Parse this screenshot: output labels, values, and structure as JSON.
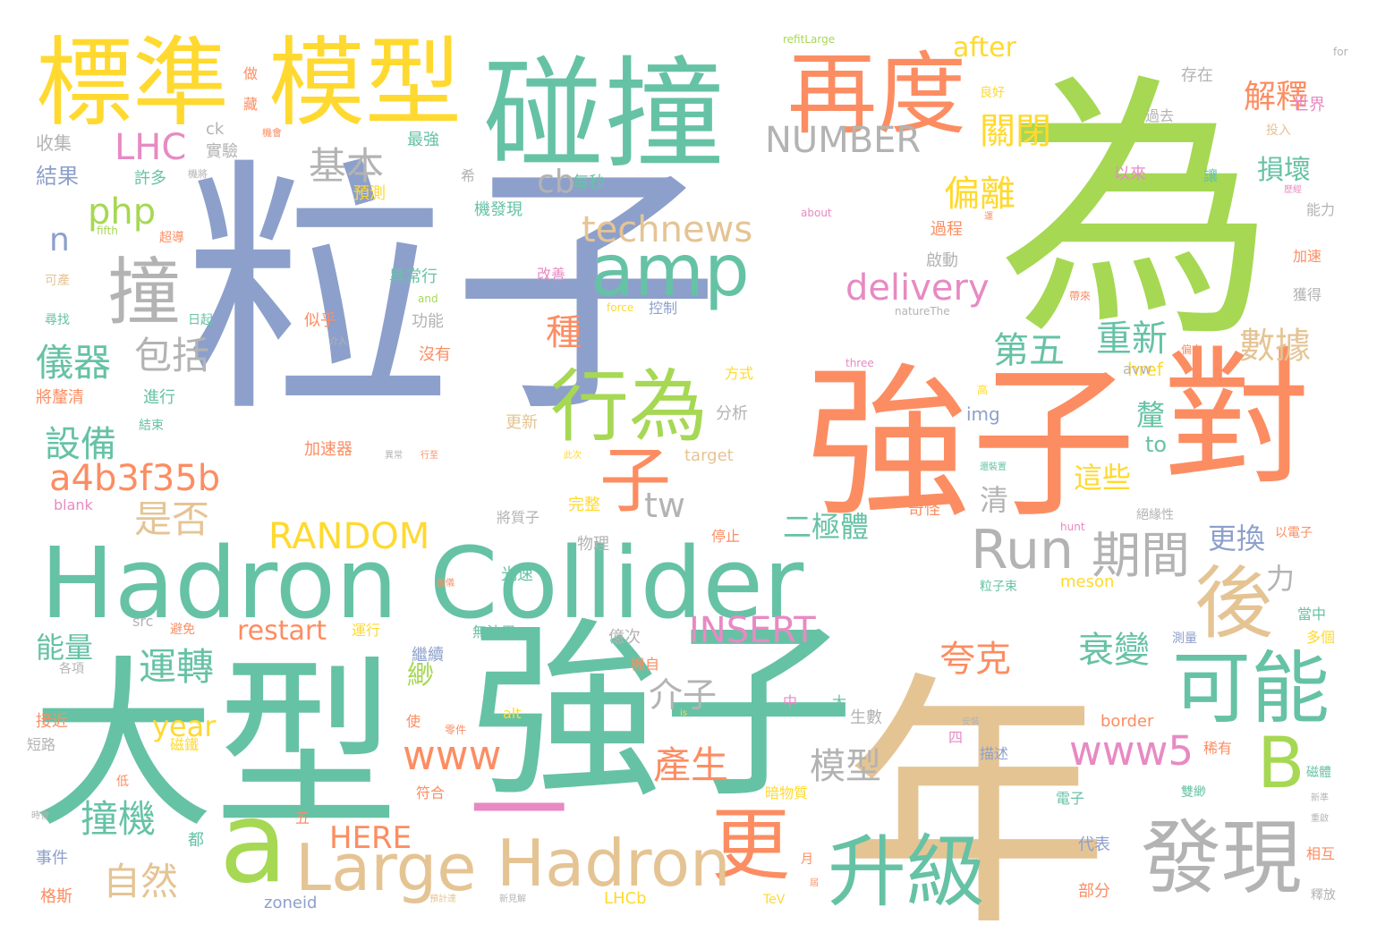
{
  "palette": {
    "green": "#66c2a5",
    "orange": "#fc8d62",
    "blue": "#8da0cb",
    "pink": "#e78ac3",
    "lime": "#a6d854",
    "yellow": "#ffd92f",
    "tan": "#e5c494",
    "gray": "#b3b3b3"
  },
  "words": [
    {
      "text": "粒子",
      "weight": 100,
      "color": "blue"
    },
    {
      "text": "為",
      "weight": 92,
      "color": "lime"
    },
    {
      "text": "年",
      "weight": 88,
      "color": "tan"
    },
    {
      "text": "強子",
      "weight": 62,
      "color": "green"
    },
    {
      "text": "大型",
      "weight": 60,
      "color": "green"
    },
    {
      "text": "強子",
      "weight": 58,
      "color": "orange"
    },
    {
      "text": "對",
      "weight": 54,
      "color": "orange"
    },
    {
      "text": "Hadron Collider",
      "weight": 44,
      "color": "green"
    },
    {
      "text": "碰撞",
      "weight": 40,
      "color": "green"
    },
    {
      "text": "一",
      "weight": 38,
      "color": "pink"
    },
    {
      "text": "標準",
      "weight": 34,
      "color": "yellow"
    },
    {
      "text": "模型",
      "weight": 34,
      "color": "yellow"
    },
    {
      "text": "a",
      "weight": 32,
      "color": "lime"
    },
    {
      "text": "再度",
      "weight": 30,
      "color": "orange"
    },
    {
      "text": "發現",
      "weight": 28,
      "color": "gray"
    },
    {
      "text": "升級",
      "weight": 28,
      "color": "green"
    },
    {
      "text": "可能",
      "weight": 28,
      "color": "green"
    },
    {
      "text": "更",
      "weight": 28,
      "color": "orange"
    },
    {
      "text": "後",
      "weight": 27,
      "color": "tan"
    },
    {
      "text": "行為",
      "weight": 26,
      "color": "lime"
    },
    {
      "text": "撞",
      "weight": 25,
      "color": "gray"
    },
    {
      "text": "amp",
      "weight": 25,
      "color": "green"
    },
    {
      "text": "子",
      "weight": 23,
      "color": "orange"
    },
    {
      "text": "Hadron",
      "weight": 22,
      "color": "tan"
    },
    {
      "text": "Large",
      "weight": 22,
      "color": "tan"
    },
    {
      "text": "B",
      "weight": 22,
      "color": "lime"
    },
    {
      "text": "Run",
      "weight": 20,
      "color": "gray"
    },
    {
      "text": "期間",
      "weight": 20,
      "color": "gray"
    },
    {
      "text": "www5",
      "weight": 17,
      "color": "pink"
    },
    {
      "text": "www",
      "weight": 17,
      "color": "orange"
    },
    {
      "text": "technews",
      "weight": 16,
      "color": "tan"
    },
    {
      "text": "delivery",
      "weight": 16,
      "color": "pink"
    },
    {
      "text": "RANDOM",
      "weight": 16,
      "color": "yellow"
    },
    {
      "text": "NUMBER",
      "weight": 16,
      "color": "gray"
    },
    {
      "text": "INSERT",
      "weight": 16,
      "color": "pink"
    },
    {
      "text": "a4b3f35b",
      "weight": 16,
      "color": "orange"
    },
    {
      "text": "運轉",
      "weight": 16,
      "color": "green"
    },
    {
      "text": "儀器",
      "weight": 16,
      "color": "green"
    },
    {
      "text": "包括",
      "weight": 16,
      "color": "gray"
    },
    {
      "text": "設備",
      "weight": 15,
      "color": "green"
    },
    {
      "text": "是否",
      "weight": 15,
      "color": "tan"
    },
    {
      "text": "自然",
      "weight": 15,
      "color": "tan"
    },
    {
      "text": "撞機",
      "weight": 15,
      "color": "green"
    },
    {
      "text": "產生",
      "weight": 15,
      "color": "orange"
    },
    {
      "text": "模型",
      "weight": 15,
      "color": "gray"
    },
    {
      "text": "夸克",
      "weight": 15,
      "color": "orange"
    },
    {
      "text": "衰變",
      "weight": 15,
      "color": "green"
    },
    {
      "text": "介子",
      "weight": 15,
      "color": "gray"
    },
    {
      "text": "重新",
      "weight": 15,
      "color": "green"
    },
    {
      "text": "第五",
      "weight": 15,
      "color": "green"
    },
    {
      "text": "數據",
      "weight": 15,
      "color": "tan"
    },
    {
      "text": "偏離",
      "weight": 15,
      "color": "yellow"
    },
    {
      "text": "關閉",
      "weight": 15,
      "color": "yellow"
    },
    {
      "text": "解釋",
      "weight": 14,
      "color": "orange"
    },
    {
      "text": "基本",
      "weight": 14,
      "color": "gray"
    },
    {
      "text": "種",
      "weight": 14,
      "color": "orange"
    },
    {
      "text": "LHC",
      "weight": 14,
      "color": "pink"
    },
    {
      "text": "php",
      "weight": 14,
      "color": "lime"
    },
    {
      "text": "cb",
      "weight": 14,
      "color": "gray"
    },
    {
      "text": "n",
      "weight": 14,
      "color": "blue"
    },
    {
      "text": "tw",
      "weight": 14,
      "color": "gray"
    },
    {
      "text": "二極體",
      "weight": 13,
      "color": "green"
    },
    {
      "text": "更換",
      "weight": 13,
      "color": "blue"
    },
    {
      "text": "這些",
      "weight": 13,
      "color": "yellow"
    },
    {
      "text": "釐",
      "weight": 13,
      "color": "green"
    },
    {
      "text": "清",
      "weight": 13,
      "color": "gray"
    },
    {
      "text": "損壞",
      "weight": 13,
      "color": "green"
    },
    {
      "text": "力",
      "weight": 13,
      "color": "gray"
    },
    {
      "text": "HERE",
      "weight": 13,
      "color": "orange"
    },
    {
      "text": "restart",
      "weight": 12,
      "color": "orange"
    },
    {
      "text": "能量",
      "weight": 12,
      "color": "green"
    },
    {
      "text": "year",
      "weight": 12,
      "color": "yellow"
    },
    {
      "text": "緲",
      "weight": 12,
      "color": "lime"
    },
    {
      "text": "after",
      "weight": 12,
      "color": "yellow"
    },
    {
      "text": "href",
      "weight": 9,
      "color": "yellow"
    },
    {
      "text": "to",
      "weight": 9,
      "color": "green"
    },
    {
      "text": "avw",
      "weight": 9,
      "color": "gray"
    },
    {
      "text": "img",
      "weight": 9,
      "color": "blue"
    },
    {
      "text": "收集",
      "weight": 9,
      "color": "gray"
    },
    {
      "text": "結果",
      "weight": 9,
      "color": "blue"
    },
    {
      "text": "實驗",
      "weight": 8,
      "color": "gray"
    },
    {
      "text": "ck",
      "weight": 8,
      "color": "gray"
    },
    {
      "text": "許多",
      "weight": 8,
      "color": "green"
    },
    {
      "text": "最強",
      "weight": 8,
      "color": "green"
    },
    {
      "text": "每秒",
      "weight": 8,
      "color": "green"
    },
    {
      "text": "預測",
      "weight": 8,
      "color": "yellow"
    },
    {
      "text": "機發現",
      "weight": 8,
      "color": "green"
    },
    {
      "text": "良好",
      "weight": 7,
      "color": "yellow"
    },
    {
      "text": "存在",
      "weight": 8,
      "color": "gray"
    },
    {
      "text": "世界",
      "weight": 8,
      "color": "pink"
    },
    {
      "text": "過去",
      "weight": 8,
      "color": "gray"
    },
    {
      "text": "投入",
      "weight": 7,
      "color": "tan"
    },
    {
      "text": "以來",
      "weight": 8,
      "color": "pink"
    },
    {
      "text": "讓",
      "weight": 8,
      "color": "green"
    },
    {
      "text": "能力",
      "weight": 8,
      "color": "gray"
    },
    {
      "text": "加速",
      "weight": 8,
      "color": "orange"
    },
    {
      "text": "獲得",
      "weight": 8,
      "color": "gray"
    },
    {
      "text": "過程",
      "weight": 8,
      "color": "orange"
    },
    {
      "text": "啟動",
      "weight": 8,
      "color": "gray"
    },
    {
      "text": "異常行",
      "weight": 8,
      "color": "green"
    },
    {
      "text": "改善",
      "weight": 8,
      "color": "pink"
    },
    {
      "text": "控制",
      "weight": 8,
      "color": "blue"
    },
    {
      "text": "功能",
      "weight": 8,
      "color": "gray"
    },
    {
      "text": "似乎",
      "weight": 8,
      "color": "orange"
    },
    {
      "text": "沒有",
      "weight": 8,
      "color": "orange"
    },
    {
      "text": "方式",
      "weight": 8,
      "color": "yellow"
    },
    {
      "text": "分析",
      "weight": 8,
      "color": "gray"
    },
    {
      "text": "target",
      "weight": 8,
      "color": "tan"
    },
    {
      "text": "更新",
      "weight": 8,
      "color": "tan"
    },
    {
      "text": "加速器",
      "weight": 8,
      "color": "orange"
    },
    {
      "text": "將釐清",
      "weight": 8,
      "color": "orange"
    },
    {
      "text": "進行",
      "weight": 8,
      "color": "green"
    },
    {
      "text": "結束",
      "weight": 7,
      "color": "green"
    },
    {
      "text": "blank",
      "weight": 7,
      "color": "pink"
    },
    {
      "text": "將質子",
      "weight": 8,
      "color": "gray"
    },
    {
      "text": "完整",
      "weight": 8,
      "color": "yellow"
    },
    {
      "text": "物理",
      "weight": 8,
      "color": "gray"
    },
    {
      "text": "停止",
      "weight": 7,
      "color": "orange"
    },
    {
      "text": "光速",
      "weight": 8,
      "color": "green"
    },
    {
      "text": "奇怪",
      "weight": 8,
      "color": "orange"
    },
    {
      "text": "絕緣性",
      "weight": 7,
      "color": "gray"
    },
    {
      "text": "以電子",
      "weight": 7,
      "color": "orange"
    },
    {
      "text": "粒子束",
      "weight": 7,
      "color": "green"
    },
    {
      "text": "meson",
      "weight": 8,
      "color": "yellow"
    },
    {
      "text": "當中",
      "weight": 7,
      "color": "green"
    },
    {
      "text": "多個",
      "weight": 7,
      "color": "yellow"
    },
    {
      "text": "測量",
      "weight": 7,
      "color": "blue"
    },
    {
      "text": "src",
      "weight": 7,
      "color": "gray"
    },
    {
      "text": "避免",
      "weight": 7,
      "color": "orange"
    },
    {
      "text": "運行",
      "weight": 7,
      "color": "yellow"
    },
    {
      "text": "無法用",
      "weight": 7,
      "color": "green"
    },
    {
      "text": "億次",
      "weight": 8,
      "color": "gray"
    },
    {
      "text": "繼續",
      "weight": 8,
      "color": "blue"
    },
    {
      "text": "機自",
      "weight": 7,
      "color": "orange"
    },
    {
      "text": "各項",
      "weight": 7,
      "color": "gray"
    },
    {
      "text": "接近",
      "weight": 8,
      "color": "orange"
    },
    {
      "text": "磁鐵",
      "weight": 8,
      "color": "yellow"
    },
    {
      "text": "短路",
      "weight": 7,
      "color": "gray"
    },
    {
      "text": "使",
      "weight": 7,
      "color": "orange"
    },
    {
      "text": "零件",
      "weight": 6,
      "color": "orange"
    },
    {
      "text": "alt",
      "weight": 7,
      "color": "yellow"
    },
    {
      "text": "中",
      "weight": 7,
      "color": "pink"
    },
    {
      "text": "大",
      "weight": 7,
      "color": "green"
    },
    {
      "text": "生數",
      "weight": 7,
      "color": "gray"
    },
    {
      "text": "border",
      "weight": 8,
      "color": "orange"
    },
    {
      "text": "四",
      "weight": 7,
      "color": "pink"
    },
    {
      "text": "描述",
      "weight": 7,
      "color": "blue"
    },
    {
      "text": "稀有",
      "weight": 7,
      "color": "orange"
    },
    {
      "text": "磁體",
      "weight": 7,
      "color": "green"
    },
    {
      "text": "低",
      "weight": 7,
      "color": "orange"
    },
    {
      "text": "符合",
      "weight": 7,
      "color": "orange"
    },
    {
      "text": "暗物質",
      "weight": 7,
      "color": "yellow"
    },
    {
      "text": "電子",
      "weight": 7,
      "color": "green"
    },
    {
      "text": "雙緲",
      "weight": 7,
      "color": "green"
    },
    {
      "text": "五",
      "weight": 7,
      "color": "orange"
    },
    {
      "text": "事件",
      "weight": 7,
      "color": "blue"
    },
    {
      "text": "都",
      "weight": 7,
      "color": "green"
    },
    {
      "text": "代表",
      "weight": 7,
      "color": "blue"
    },
    {
      "text": "相互",
      "weight": 7,
      "color": "orange"
    },
    {
      "text": "格斯",
      "weight": 8,
      "color": "orange"
    },
    {
      "text": "zoneid",
      "weight": 8,
      "color": "blue"
    },
    {
      "text": "LHCb",
      "weight": 8,
      "color": "yellow"
    },
    {
      "text": "TeV",
      "weight": 7,
      "color": "yellow"
    },
    {
      "text": "月",
      "weight": 6,
      "color": "orange"
    },
    {
      "text": "部分",
      "weight": 7,
      "color": "orange"
    },
    {
      "text": "釋放",
      "weight": 6,
      "color": "gray"
    },
    {
      "text": "可產",
      "weight": 7,
      "color": "tan"
    },
    {
      "text": "尋找",
      "weight": 7,
      "color": "green"
    },
    {
      "text": "日起",
      "weight": 7,
      "color": "green"
    },
    {
      "text": "超導",
      "weight": 7,
      "color": "orange"
    },
    {
      "text": "做",
      "weight": 7,
      "color": "orange"
    },
    {
      "text": "藏",
      "weight": 7,
      "color": "orange"
    },
    {
      "text": "希",
      "weight": 7,
      "color": "gray"
    },
    {
      "text": "機會",
      "weight": 6,
      "color": "orange"
    },
    {
      "text": "機將",
      "weight": 6,
      "color": "gray"
    },
    {
      "text": "運",
      "weight": 6,
      "color": "orange"
    },
    {
      "text": "偏向",
      "weight": 6,
      "color": "orange"
    },
    {
      "text": "帶來",
      "weight": 6,
      "color": "orange"
    },
    {
      "text": "歷經",
      "weight": 6,
      "color": "pink"
    },
    {
      "text": "介入",
      "weight": 5,
      "color": "gray"
    },
    {
      "text": "異常",
      "weight": 5,
      "color": "gray"
    },
    {
      "text": "行至",
      "weight": 5,
      "color": "orange"
    },
    {
      "text": "此次",
      "weight": 5,
      "color": "yellow"
    },
    {
      "text": "還裝置",
      "weight": 5,
      "color": "green"
    },
    {
      "text": "高",
      "weight": 5,
      "color": "yellow"
    },
    {
      "text": "畫儀",
      "weight": 5,
      "color": "orange"
    },
    {
      "text": "安裝",
      "weight": 5,
      "color": "gray"
    },
    {
      "text": "時會",
      "weight": 5,
      "color": "gray"
    },
    {
      "text": "新準",
      "weight": 5,
      "color": "gray"
    },
    {
      "text": "重啟",
      "weight": 5,
      "color": "gray"
    },
    {
      "text": "預計達",
      "weight": 5,
      "color": "tan"
    },
    {
      "text": "新見解",
      "weight": 5,
      "color": "gray"
    },
    {
      "text": "屆",
      "weight": 5,
      "color": "orange"
    },
    {
      "text": "refitLarge",
      "weight": 5,
      "color": "lime"
    },
    {
      "text": "for",
      "weight": 5,
      "color": "gray"
    },
    {
      "text": "about",
      "weight": 5,
      "color": "pink"
    },
    {
      "text": "of",
      "weight": 5,
      "color": "lime"
    },
    {
      "text": "fifth",
      "weight": 5,
      "color": "lime"
    },
    {
      "text": "force",
      "weight": 5,
      "color": "yellow"
    },
    {
      "text": "natureThe",
      "weight": 5,
      "color": "gray"
    },
    {
      "text": "and",
      "weight": 5,
      "color": "lime"
    },
    {
      "text": "three",
      "weight": 5,
      "color": "pink"
    },
    {
      "text": "hunt",
      "weight": 5,
      "color": "pink"
    },
    {
      "text": "is",
      "weight": 5,
      "color": "yellow"
    }
  ]
}
